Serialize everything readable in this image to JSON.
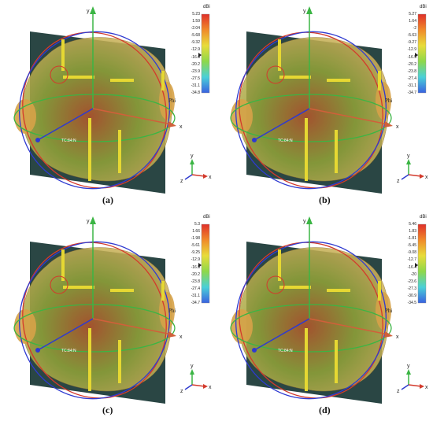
{
  "units_label": "dBi",
  "axis_labels": {
    "x": "x",
    "y": "y",
    "z": "z",
    "phi": "Phi",
    "port": "TC:84:N"
  },
  "panels": [
    {
      "caption": "(a)",
      "ticks": [
        "5.23",
        "1.59",
        "-2.04",
        "-5.68",
        "-9.32",
        "-12.9",
        "-16.6",
        "-20.2",
        "-23.9",
        "-27.5",
        "-31.1",
        "-34.8"
      ]
    },
    {
      "caption": "(b)",
      "ticks": [
        "5.27",
        "1.64",
        "-2",
        "-5.63",
        "-9.27",
        "-12.9",
        "-16.5",
        "-20.2",
        "-23.8",
        "-27.4",
        "-31.1",
        "-34.7"
      ]
    },
    {
      "caption": "(c)",
      "ticks": [
        "5.3",
        "1.66",
        "-1.98",
        "-5.61",
        "-9.25",
        "-12.9",
        "-16.5",
        "-20.2",
        "-23.8",
        "-27.4",
        "-31.1",
        "-34.7"
      ]
    },
    {
      "caption": "(d)",
      "ticks": [
        "5.46",
        "1.83",
        "-1.81",
        "-5.45",
        "-9.08",
        "-12.7",
        "-16.4",
        "-20",
        "-23.6",
        "-27.3",
        "-30.9",
        "-34.5"
      ]
    }
  ]
}
